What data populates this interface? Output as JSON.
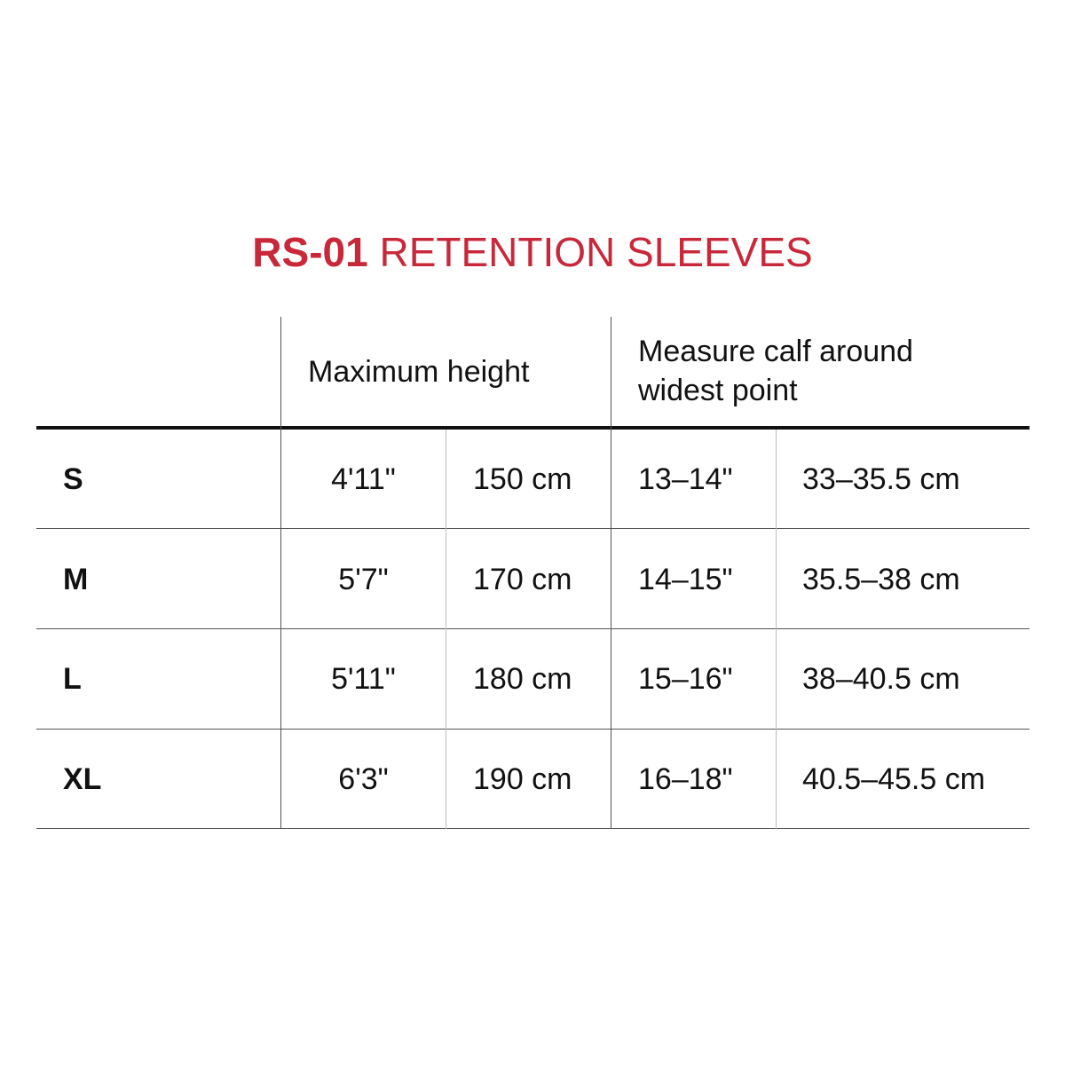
{
  "title": {
    "model": "RS-01",
    "name": "RETENTION SLEEVES"
  },
  "header": {
    "height_label": "Maximum height",
    "calf_label_line1": "Measure calf around",
    "calf_label_line2": "widest point"
  },
  "rows": [
    {
      "size": "S",
      "height_imperial": "4'11\"",
      "height_metric": "150 cm",
      "calf_imperial": "13–14\"",
      "calf_metric": "33–35.5 cm"
    },
    {
      "size": "M",
      "height_imperial": "5'7\"",
      "height_metric": "170 cm",
      "calf_imperial": "14–15\"",
      "calf_metric": "35.5–38 cm"
    },
    {
      "size": "L",
      "height_imperial": "5'11\"",
      "height_metric": "180 cm",
      "calf_imperial": "15–16\"",
      "calf_metric": "38–40.5 cm"
    },
    {
      "size": "XL",
      "height_imperial": "6'3\"",
      "height_metric": "190 cm",
      "calf_imperial": "16–18\"",
      "calf_metric": "40.5–45.5 cm"
    }
  ],
  "colors": {
    "title_red": "#c8283a",
    "text": "#111111",
    "rule_dark": "#111111",
    "rule_light": "#bdbdbd"
  }
}
